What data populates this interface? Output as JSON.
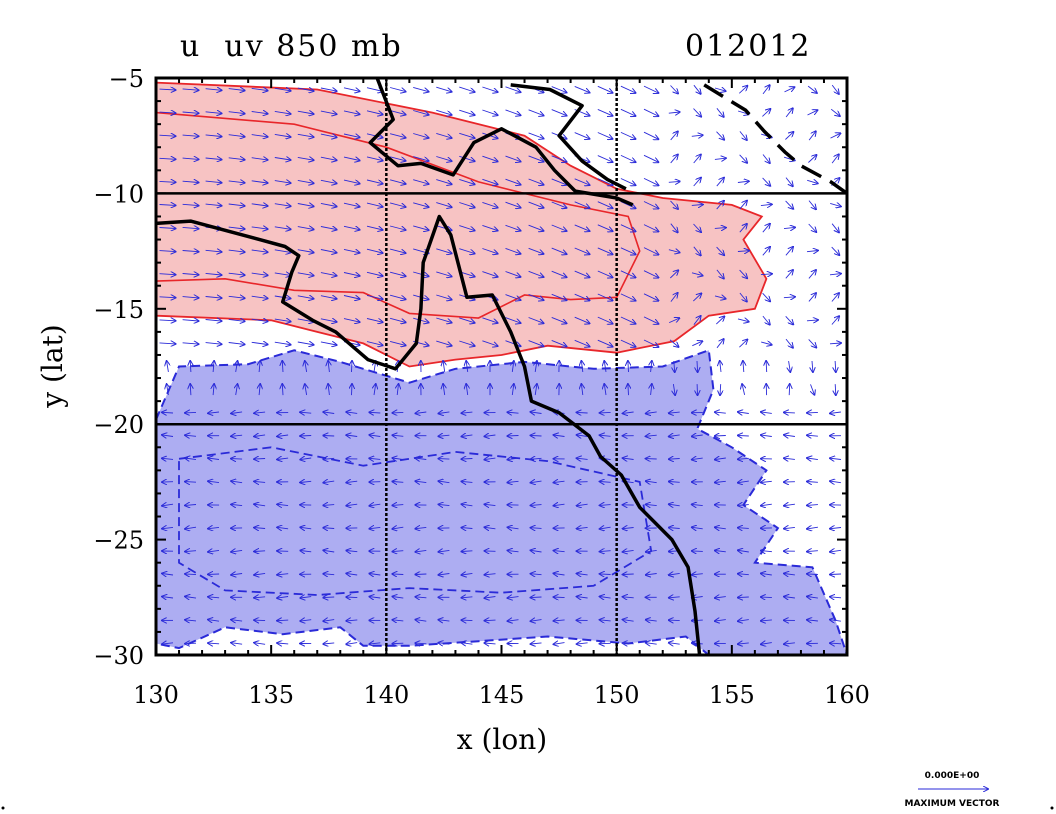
{
  "chart_data": {
    "type": "map",
    "title": "u  uv 850 mb",
    "date_label": "012012",
    "xlabel": "x (lon)",
    "ylabel": "y (lat)",
    "xlim": [
      130,
      160
    ],
    "ylim": [
      -30,
      -5
    ],
    "x_ticks": [
      130,
      135,
      140,
      145,
      150,
      155,
      160
    ],
    "y_ticks": [
      -5,
      -10,
      -15,
      -20,
      -25,
      -30
    ],
    "x_tick_labels": [
      "130",
      "135",
      "140",
      "145",
      "150",
      "155",
      "160"
    ],
    "y_tick_labels": [
      "−5",
      "−10",
      "−15",
      "−20",
      "−25",
      "−30"
    ],
    "grid_lines": {
      "lon": [
        140,
        150
      ],
      "lat": [
        -10,
        -20
      ]
    },
    "legend_vector": {
      "value": "0.000E+00",
      "label": "MAXIMUM VECTOR"
    },
    "colors": {
      "positive_fill": "#f7c3c3",
      "positive_contour": "#e8262a",
      "negative_fill": "#adadf2",
      "negative_contour": "#2a2ad8",
      "coastline": "#000000",
      "vectors": "#2a2ad8"
    },
    "regions": {
      "positive_u": [
        [
          130,
          -5.2
        ],
        [
          137,
          -5.5
        ],
        [
          142,
          -6.5
        ],
        [
          146,
          -7.5
        ],
        [
          148,
          -8.8
        ],
        [
          150,
          -9.8
        ],
        [
          152,
          -10.2
        ],
        [
          155,
          -10.5
        ],
        [
          156.3,
          -11
        ],
        [
          155.5,
          -12
        ],
        [
          156.5,
          -13.7
        ],
        [
          156,
          -15
        ],
        [
          154,
          -15.3
        ],
        [
          152.5,
          -16.4
        ],
        [
          150,
          -16.9
        ],
        [
          147,
          -16.6
        ],
        [
          145,
          -17
        ],
        [
          143,
          -17.2
        ],
        [
          141,
          -17.5
        ],
        [
          139,
          -16.5
        ],
        [
          137,
          -16
        ],
        [
          135,
          -15.5
        ],
        [
          130,
          -15.3
        ]
      ],
      "negative_u": [
        [
          130,
          -19.8
        ],
        [
          131,
          -17.5
        ],
        [
          134,
          -17.4
        ],
        [
          136,
          -16.8
        ],
        [
          138,
          -17.3
        ],
        [
          141,
          -18.2
        ],
        [
          143,
          -17.6
        ],
        [
          146,
          -17.3
        ],
        [
          149,
          -17.6
        ],
        [
          152,
          -17.5
        ],
        [
          154,
          -16.8
        ],
        [
          154.2,
          -18.5
        ],
        [
          153.5,
          -20.2
        ],
        [
          155,
          -21
        ],
        [
          156.5,
          -22
        ],
        [
          155.5,
          -23.5
        ],
        [
          157,
          -24.5
        ],
        [
          156,
          -26
        ],
        [
          158.5,
          -26.2
        ],
        [
          159.5,
          -28.5
        ],
        [
          160,
          -30
        ],
        [
          154,
          -30
        ],
        [
          153,
          -29.2
        ],
        [
          150.5,
          -29.5
        ],
        [
          147,
          -29.2
        ],
        [
          144,
          -29.4
        ],
        [
          141,
          -29.6
        ],
        [
          139,
          -29.6
        ],
        [
          138,
          -28.8
        ],
        [
          135.5,
          -29.1
        ],
        [
          133,
          -28.8
        ],
        [
          131,
          -29.7
        ],
        [
          130,
          -29.5
        ]
      ],
      "inner_contour_positive": [
        [
          130,
          -6.5
        ],
        [
          136,
          -7
        ],
        [
          140,
          -8
        ],
        [
          144,
          -9.5
        ],
        [
          148,
          -10.5
        ],
        [
          150.5,
          -11
        ],
        [
          151,
          -12.5
        ],
        [
          150,
          -14.5
        ],
        [
          148,
          -14.6
        ],
        [
          146,
          -14.4
        ],
        [
          144,
          -15.4
        ],
        [
          141,
          -15.2
        ],
        [
          139,
          -14.3
        ],
        [
          136,
          -14.2
        ],
        [
          133,
          -13.7
        ],
        [
          130,
          -13.8
        ]
      ],
      "inner_contour_negative": [
        [
          131,
          -21.5
        ],
        [
          135,
          -21
        ],
        [
          139,
          -21.8
        ],
        [
          143,
          -21.2
        ],
        [
          147,
          -21.6
        ],
        [
          151,
          -22.5
        ],
        [
          151.5,
          -25.5
        ],
        [
          149,
          -27
        ],
        [
          145,
          -27.3
        ],
        [
          141,
          -27.1
        ],
        [
          137,
          -27.4
        ],
        [
          133,
          -27.2
        ],
        [
          131,
          -26
        ]
      ]
    },
    "coastline": {
      "png_coast": [
        [
          139.6,
          -5
        ],
        [
          140.3,
          -6.8
        ],
        [
          139.3,
          -7.8
        ],
        [
          140.5,
          -8.8
        ],
        [
          141.5,
          -8.7
        ],
        [
          142.9,
          -9.2
        ],
        [
          143.8,
          -7.8
        ],
        [
          145,
          -7.2
        ],
        [
          146.5,
          -8
        ],
        [
          147.3,
          -9
        ],
        [
          148.2,
          -9.9
        ],
        [
          150,
          -10.2
        ],
        [
          150.7,
          -10.5
        ]
      ],
      "png_north": [
        [
          145.4,
          -5.3
        ],
        [
          147.1,
          -5.5
        ],
        [
          148.5,
          -6.2
        ],
        [
          147.5,
          -7.5
        ],
        [
          148.5,
          -8.6
        ],
        [
          149.6,
          -9.4
        ],
        [
          150.4,
          -9.8
        ]
      ],
      "australia": [
        [
          130,
          -11.3
        ],
        [
          131.5,
          -11.2
        ],
        [
          133,
          -11.6
        ],
        [
          134.5,
          -12
        ],
        [
          135.6,
          -12.3
        ],
        [
          136.2,
          -12.7
        ],
        [
          135.9,
          -13.4
        ],
        [
          135.5,
          -14.7
        ],
        [
          136.8,
          -15.5
        ],
        [
          137.8,
          -16
        ],
        [
          139.2,
          -17.2
        ],
        [
          140.4,
          -17.6
        ],
        [
          141.3,
          -16.5
        ],
        [
          141.5,
          -15
        ],
        [
          141.6,
          -13
        ],
        [
          142.3,
          -11
        ],
        [
          142.8,
          -11.8
        ],
        [
          143.5,
          -14.5
        ],
        [
          144.6,
          -14.4
        ],
        [
          145.4,
          -16
        ],
        [
          146,
          -17.5
        ],
        [
          146.3,
          -19
        ],
        [
          147.5,
          -19.5
        ],
        [
          148.8,
          -20.5
        ],
        [
          149.3,
          -21.4
        ],
        [
          150.2,
          -22.2
        ],
        [
          151,
          -23.6
        ],
        [
          152.4,
          -25
        ],
        [
          153.1,
          -26.2
        ],
        [
          153.4,
          -28.1
        ],
        [
          153.6,
          -30
        ]
      ],
      "east_islands": [
        [
          153.8,
          -5.3
        ],
        [
          155.6,
          -6.4
        ],
        [
          156.4,
          -7.3
        ],
        [
          157.3,
          -8.2
        ],
        [
          158,
          -8.8
        ],
        [
          159.3,
          -9.5
        ],
        [
          160,
          -10
        ]
      ]
    }
  }
}
